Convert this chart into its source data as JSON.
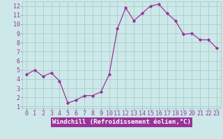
{
  "x": [
    0,
    1,
    2,
    3,
    4,
    5,
    6,
    7,
    8,
    9,
    10,
    11,
    12,
    13,
    14,
    15,
    16,
    17,
    18,
    19,
    20,
    21,
    22,
    23
  ],
  "y": [
    4.5,
    5.0,
    4.3,
    4.7,
    3.8,
    1.4,
    1.7,
    2.2,
    2.2,
    2.6,
    4.5,
    9.5,
    11.8,
    10.4,
    11.2,
    12.0,
    12.2,
    11.2,
    10.4,
    8.9,
    9.0,
    8.3,
    8.3,
    7.4
  ],
  "line_color": "#993399",
  "marker": "D",
  "marker_size": 2.2,
  "bg_color": "#cce8e8",
  "grid_color": "#aacccc",
  "xlabel": "Windchill (Refroidissement éolien,°C)",
  "xlabel_color": "#ffffff",
  "xlabel_bg": "#993399",
  "ylabel_ticks": [
    1,
    2,
    3,
    4,
    5,
    6,
    7,
    8,
    9,
    10,
    11,
    12
  ],
  "xlim": [
    -0.5,
    23.5
  ],
  "ylim": [
    0.8,
    12.5
  ],
  "tick_color": "#993399",
  "axis_label_fontsize": 6.5,
  "tick_fontsize": 6.0,
  "linewidth": 0.9
}
